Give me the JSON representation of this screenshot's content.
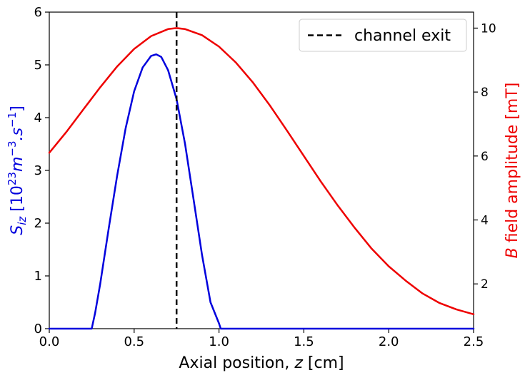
{
  "chart_data": {
    "type": "line",
    "xlabel_prefix": "Axial position, ",
    "xlabel_var": "z",
    "xlabel_unit": " [cm]",
    "ylabel_left_var": "S",
    "ylabel_left_sub": "iz",
    "ylabel_left_open": " [10",
    "ylabel_left_exp1": "23",
    "ylabel_left_mid1": "m",
    "ylabel_left_exp2": "−3",
    "ylabel_left_mid2": ".s",
    "ylabel_left_exp3": "−1",
    "ylabel_left_close": "]",
    "ylabel_right_var": "B",
    "ylabel_right_rest": " field amplitude [mT]",
    "xlim": [
      0,
      2.5
    ],
    "ylim_left": [
      0,
      6
    ],
    "ylim_right": [
      0.6,
      10.5
    ],
    "xticks": [
      0.0,
      0.5,
      1.0,
      1.5,
      2.0,
      2.5
    ],
    "xtick_labels": [
      "0.0",
      "0.5",
      "1.0",
      "1.5",
      "2.0",
      "2.5"
    ],
    "yticks_left": [
      0,
      1,
      2,
      3,
      4,
      5,
      6
    ],
    "ytick_left_labels": [
      "0",
      "1",
      "2",
      "3",
      "4",
      "5",
      "6"
    ],
    "yticks_right": [
      2,
      4,
      6,
      8,
      10
    ],
    "ytick_right_labels": [
      "2",
      "4",
      "6",
      "8",
      "10"
    ],
    "grid": false,
    "legend_position": "top-right",
    "legend_label": "channel exit",
    "vline_x": 0.75,
    "colors": {
      "ionization": "#0000dd",
      "bfield": "#ee0000",
      "vline": "#000000",
      "left_label": "#0000dd",
      "right_label": "#ee0000"
    },
    "series": [
      {
        "axis": "left",
        "x": [
          0,
          0.25,
          0.27,
          0.3,
          0.35,
          0.4,
          0.45,
          0.5,
          0.55,
          0.6,
          0.63,
          0.66,
          0.7,
          0.75,
          0.8,
          0.85,
          0.9,
          0.95,
          1.0,
          1.01,
          1.05,
          1.5,
          2.0,
          2.5
        ],
        "y": [
          0,
          0,
          0.3,
          0.85,
          1.9,
          2.9,
          3.8,
          4.5,
          4.95,
          5.17,
          5.2,
          5.15,
          4.9,
          4.35,
          3.5,
          2.45,
          1.4,
          0.5,
          0.1,
          0,
          0,
          0,
          0,
          0
        ]
      },
      {
        "axis": "right",
        "x": [
          0,
          0.1,
          0.2,
          0.3,
          0.4,
          0.5,
          0.6,
          0.7,
          0.75,
          0.8,
          0.9,
          1.0,
          1.1,
          1.2,
          1.3,
          1.4,
          1.5,
          1.6,
          1.7,
          1.8,
          1.9,
          2.0,
          2.1,
          2.2,
          2.3,
          2.4,
          2.5
        ],
        "y": [
          6.1,
          6.75,
          7.45,
          8.15,
          8.8,
          9.35,
          9.75,
          9.97,
          10.0,
          9.97,
          9.78,
          9.42,
          8.92,
          8.3,
          7.58,
          6.8,
          6.0,
          5.2,
          4.45,
          3.75,
          3.1,
          2.55,
          2.1,
          1.7,
          1.4,
          1.2,
          1.05
        ]
      }
    ]
  }
}
